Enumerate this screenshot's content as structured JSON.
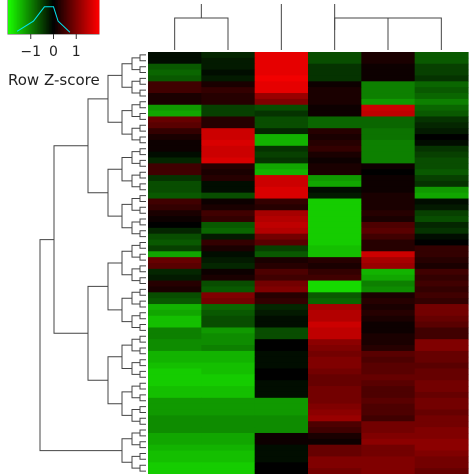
{
  "chart_data": {
    "type": "heatmap",
    "title": "",
    "legend": {
      "title": "Row Z-score",
      "ticks": [
        "−1",
        "0",
        "1"
      ],
      "tick_values": [
        -1,
        0,
        1
      ],
      "range": [
        -2,
        2
      ],
      "low_color": "#1aff00",
      "mid_color": "#000000",
      "high_color": "#ff0000",
      "placement": "top-left"
    },
    "n_columns": 6,
    "column_order": [
      1,
      2,
      3,
      4,
      5,
      6
    ],
    "row_order": [
      1,
      2,
      3,
      4,
      5,
      6,
      7,
      8,
      9,
      10,
      11,
      12,
      13,
      14,
      15,
      16,
      17,
      18,
      19,
      20,
      21,
      22,
      23,
      24,
      25,
      26,
      27,
      28,
      29,
      30,
      31,
      32,
      33,
      34,
      35,
      36,
      37,
      38,
      39,
      40,
      41,
      42,
      43,
      44,
      45,
      46,
      47,
      48,
      49,
      50,
      51,
      52,
      53,
      54,
      55,
      56,
      57,
      58,
      59,
      60,
      61,
      62,
      63,
      64,
      65,
      66,
      67,
      68,
      69,
      70,
      71,
      72
    ],
    "values": [
      [
        -0.1,
        -0.3,
        1.8,
        -0.6,
        0.2,
        -0.7
      ],
      [
        -0.1,
        -0.2,
        1.8,
        -0.6,
        0.2,
        -0.7
      ],
      [
        -0.7,
        -0.2,
        1.8,
        -0.4,
        0.1,
        -0.5
      ],
      [
        -0.8,
        -0.1,
        1.8,
        -0.4,
        0.1,
        -0.5
      ],
      [
        -0.7,
        -0.2,
        1.9,
        -0.4,
        0.1,
        -0.4
      ],
      [
        0.5,
        0.2,
        1.8,
        0.1,
        -1.0,
        -0.8
      ],
      [
        0.5,
        0.4,
        1.8,
        0.2,
        -1.0,
        -0.7
      ],
      [
        0.2,
        0.3,
        1.2,
        0.2,
        -1.0,
        -0.8
      ],
      [
        0.2,
        0.3,
        1.0,
        0.2,
        -1.2,
        -1.0
      ],
      [
        -1.2,
        -0.5,
        -0.6,
        0.1,
        1.6,
        -0.8
      ],
      [
        -1.3,
        -0.5,
        -0.4,
        0.1,
        1.5,
        -0.7
      ],
      [
        0.8,
        0.3,
        -0.6,
        -0.8,
        -0.8,
        -0.4
      ],
      [
        0.7,
        0.3,
        -0.6,
        -0.8,
        -0.8,
        -0.3
      ],
      [
        0.4,
        1.6,
        -0.3,
        0.3,
        -0.9,
        -0.2
      ],
      [
        0.2,
        1.6,
        -1.4,
        0.2,
        -0.9,
        0.0
      ],
      [
        0.1,
        1.7,
        -1.4,
        0.3,
        -1.0,
        -0.1
      ],
      [
        0.1,
        1.6,
        -0.4,
        0.4,
        -1.0,
        -0.4
      ],
      [
        -0.1,
        1.6,
        -0.5,
        0.2,
        -1.0,
        -0.5
      ],
      [
        -0.3,
        1.7,
        -0.4,
        0.1,
        -1.0,
        -0.6
      ],
      [
        0.5,
        0.3,
        -1.3,
        0.2,
        0.1,
        -0.6
      ],
      [
        0.5,
        0.2,
        -1.4,
        0.2,
        0.0,
        -0.7
      ],
      [
        -0.4,
        0.3,
        1.6,
        -1.2,
        0.1,
        -0.5
      ],
      [
        -0.6,
        -0.1,
        1.6,
        -1.3,
        0.1,
        -0.4
      ],
      [
        -0.6,
        -0.1,
        1.7,
        -0.1,
        0.1,
        -1.2
      ],
      [
        -0.7,
        -0.6,
        1.7,
        -0.2,
        0.2,
        -1.3
      ],
      [
        0.5,
        0.1,
        0.4,
        -1.6,
        0.2,
        -0.1
      ],
      [
        0.4,
        0.2,
        0.3,
        -1.6,
        0.2,
        -0.2
      ],
      [
        0.2,
        0.5,
        1.3,
        -1.6,
        0.3,
        -0.5
      ],
      [
        0.1,
        0.4,
        1.4,
        -1.6,
        0.2,
        -0.6
      ],
      [
        0.0,
        -0.7,
        1.5,
        -1.6,
        0.6,
        -0.3
      ],
      [
        -0.3,
        -0.8,
        1.4,
        -1.6,
        0.7,
        -0.4
      ],
      [
        -0.6,
        -0.2,
        0.9,
        -1.6,
        0.5,
        -0.1
      ],
      [
        -0.7,
        0.4,
        0.7,
        -1.6,
        0.3,
        0.0
      ],
      [
        -0.5,
        0.2,
        -0.5,
        -1.5,
        0.3,
        0.4
      ],
      [
        -1.3,
        -0.1,
        -0.7,
        -1.5,
        1.6,
        0.4
      ],
      [
        0.8,
        -0.2,
        0.2,
        0.3,
        1.3,
        0.3
      ],
      [
        0.7,
        -0.3,
        0.3,
        0.2,
        1.2,
        0.2
      ],
      [
        -0.3,
        0.1,
        0.6,
        0.4,
        -1.4,
        0.5
      ],
      [
        -0.2,
        0.2,
        0.5,
        0.5,
        -1.3,
        0.4
      ],
      [
        0.3,
        -0.6,
        0.9,
        -1.7,
        -1.0,
        0.5
      ],
      [
        0.2,
        -0.7,
        1.0,
        -1.7,
        -1.1,
        0.4
      ],
      [
        -0.6,
        1.0,
        0.3,
        -0.7,
        0.2,
        0.5
      ],
      [
        -0.7,
        0.9,
        0.4,
        -0.8,
        0.3,
        0.4
      ],
      [
        -1.4,
        -0.8,
        -0.3,
        1.3,
        0.2,
        0.9
      ],
      [
        -1.3,
        -0.7,
        -0.2,
        1.4,
        0.3,
        0.9
      ],
      [
        -1.5,
        -0.6,
        -0.1,
        1.4,
        0.2,
        0.8
      ],
      [
        -1.5,
        -0.6,
        -0.1,
        1.6,
        0.1,
        0.7
      ],
      [
        -1.0,
        -1.2,
        -0.6,
        1.5,
        0.1,
        0.5
      ],
      [
        -1.0,
        -1.1,
        -0.6,
        1.5,
        0.2,
        0.5
      ],
      [
        -1.1,
        -1.1,
        0.0,
        1.1,
        0.2,
        1.0
      ],
      [
        -1.1,
        -1.0,
        0.0,
        1.0,
        0.3,
        1.0
      ],
      [
        -1.4,
        -1.4,
        -0.1,
        0.9,
        0.7,
        0.8
      ],
      [
        -1.4,
        -1.4,
        -0.1,
        1.0,
        0.6,
        0.8
      ],
      [
        -1.5,
        -1.5,
        -0.1,
        1.0,
        0.7,
        0.7
      ],
      [
        -1.6,
        -1.5,
        0.0,
        0.9,
        0.7,
        0.8
      ],
      [
        -1.6,
        -1.6,
        0.0,
        0.8,
        0.8,
        0.8
      ],
      [
        -1.6,
        -1.6,
        -0.1,
        0.8,
        0.7,
        0.9
      ],
      [
        -1.5,
        -1.5,
        -0.1,
        0.9,
        0.6,
        0.9
      ],
      [
        -1.5,
        -1.5,
        -0.1,
        0.9,
        0.6,
        0.8
      ],
      [
        -1.2,
        -1.2,
        -1.2,
        0.9,
        0.7,
        0.9
      ],
      [
        -1.2,
        -1.2,
        -1.2,
        1.0,
        0.6,
        0.9
      ],
      [
        -1.2,
        -1.2,
        -1.2,
        1.1,
        0.6,
        0.8
      ],
      [
        -1.1,
        -1.1,
        -1.1,
        1.2,
        0.5,
        0.9
      ],
      [
        -1.1,
        -1.1,
        -1.1,
        0.6,
        0.9,
        0.9
      ],
      [
        -1.1,
        -1.1,
        -1.1,
        0.5,
        0.9,
        1.0
      ],
      [
        -1.3,
        -1.3,
        0.1,
        0.2,
        1.0,
        1.0
      ],
      [
        -1.3,
        -1.3,
        0.1,
        0.1,
        1.1,
        1.1
      ],
      [
        -1.4,
        -1.4,
        -0.1,
        0.8,
        0.9,
        1.1
      ],
      [
        -1.5,
        -1.5,
        -0.1,
        0.8,
        0.9,
        1.0
      ],
      [
        -1.5,
        -1.5,
        -0.1,
        1.0,
        1.0,
        0.9
      ],
      [
        -1.6,
        -1.6,
        0.0,
        1.0,
        1.0,
        0.9
      ],
      [
        -1.6,
        -1.6,
        0.0,
        0.9,
        1.0,
        0.8
      ]
    ]
  }
}
